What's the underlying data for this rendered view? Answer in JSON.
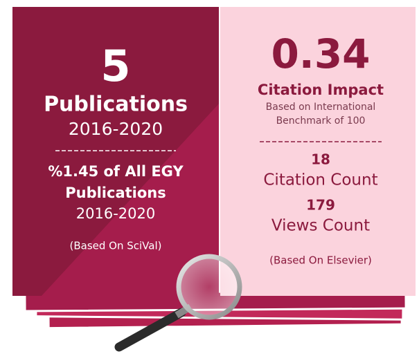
{
  "left": {
    "count": 5,
    "label": "Publications",
    "period": "2016-2020",
    "share": [
      "%1.45 of All EGY",
      "Publications"
    ],
    "share_period": "2016-2020",
    "source": "(Based On SciVal)"
  },
  "right": {
    "value": 0.34,
    "label": "Citation Impact",
    "note": [
      "Based on International",
      "Benchmark of 100"
    ],
    "stats": [
      {
        "value": 18,
        "label": "Citation Count"
      },
      {
        "value": 179,
        "label": "Views Count"
      }
    ],
    "source": "(Based On Elsevier)"
  }
}
